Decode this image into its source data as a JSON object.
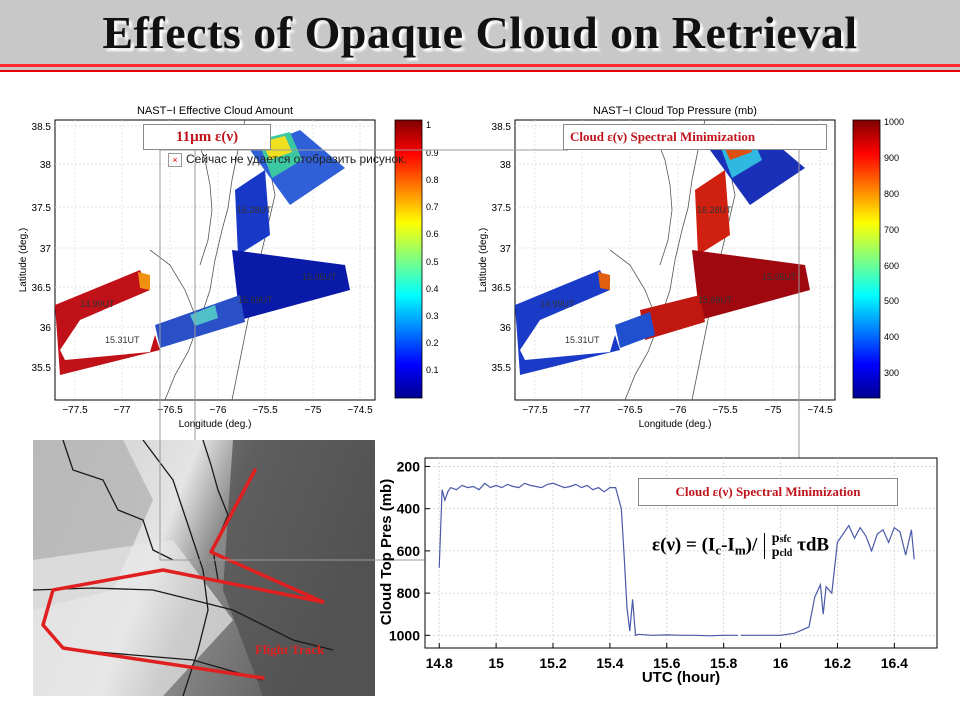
{
  "title": "Effects of Opaque Cloud on Retrieval",
  "map_left": {
    "title": "NAST−I Effective Cloud Amount",
    "xlabel": "Longitude (deg.)",
    "ylabel": "Latitude (deg.)",
    "xticks": [
      "−77.5",
      "−77",
      "−76.5",
      "−76",
      "−75.5",
      "−75",
      "−74.5"
    ],
    "yticks": [
      "38.5",
      "38",
      "37.5",
      "37",
      "36.5",
      "36",
      "35.5"
    ],
    "colorbar_ticks": [
      "1",
      "0.9",
      "0.8",
      "0.7",
      "0.6",
      "0.5",
      "0.4",
      "0.3",
      "0.2",
      "0.1"
    ],
    "track_labels": [
      "14.99UT",
      "15.31UT",
      "15.69UT",
      "15.95UT",
      "16.28UT"
    ]
  },
  "map_right": {
    "title": "NAST−I Cloud Top Pressure (mb)",
    "xlabel": "Longitude (deg.)",
    "ylabel": "Latitude (deg.)",
    "xticks": [
      "−77.5",
      "−77",
      "−76.5",
      "−76",
      "−75.5",
      "−75",
      "−74.5"
    ],
    "yticks": [
      "38.5",
      "38",
      "37.5",
      "37",
      "36.5",
      "36",
      "35.5"
    ],
    "colorbar_ticks": [
      "1000",
      "900",
      "800",
      "700",
      "600",
      "500",
      "400",
      "300"
    ],
    "track_labels": [
      "14.99UT",
      "15.31UT",
      "15.69UT",
      "15.95UT",
      "16.28UT"
    ]
  },
  "annotations": {
    "label_11um": "11µm ε(ν)",
    "spectral_min_top": "Cloud ε(ν) Spectral Minimization",
    "spectral_min_bottom": "Cloud ε(ν) Spectral Minimization",
    "popup_text": "Сейчас не удается отобразить рисунок.",
    "popup_icon": "×",
    "flight_track": "Flight Track",
    "formula_lhs": "ε(ν) = (I",
    "formula_c": "c",
    "formula_mid": "-I",
    "formula_m": "m",
    "formula_rhs": ")/",
    "formula_psfc": "p",
    "formula_sfc": "sfc",
    "formula_pcld": "p",
    "formula_cld": "cld",
    "formula_tail": " τdB"
  },
  "colors": {
    "accent_red": "#e02020",
    "series": "#4a5aa8"
  },
  "chart_data": {
    "type": "line",
    "title": "",
    "xlabel": "UTC (hour)",
    "ylabel": "Cloud Top Pres (mb)",
    "xlim": [
      14.75,
      16.55
    ],
    "ylim": [
      1060,
      160
    ],
    "y_reversed": true,
    "xticks": [
      14.8,
      15.0,
      15.2,
      15.4,
      15.6,
      15.8,
      16.0,
      16.2,
      16.4
    ],
    "xtick_labels": [
      "14.8",
      "15",
      "15.2",
      "15.4",
      "15.6",
      "15.8",
      "16",
      "16.2",
      "16.4"
    ],
    "yticks": [
      200,
      400,
      600,
      800,
      1000
    ],
    "ytick_labels": [
      "200",
      "400",
      "600",
      "800",
      "1000"
    ],
    "grid": true,
    "series": [
      {
        "x": [
          14.8,
          14.81,
          14.82,
          14.83,
          14.84,
          14.86,
          14.88,
          14.9,
          14.92,
          14.94,
          14.96,
          14.98,
          15.0,
          15.02,
          15.04,
          15.06,
          15.08,
          15.1,
          15.12,
          15.14,
          15.16,
          15.18,
          15.2,
          15.22,
          15.24,
          15.26,
          15.28,
          15.3,
          15.32,
          15.34,
          15.36,
          15.38,
          15.4,
          15.42,
          15.44,
          15.45,
          15.46,
          15.47,
          15.48,
          15.49,
          15.5,
          15.55,
          15.6,
          15.65,
          15.7,
          15.75,
          15.8,
          15.85
        ],
        "y": [
          680,
          310,
          360,
          320,
          300,
          310,
          290,
          300,
          295,
          310,
          280,
          300,
          290,
          300,
          285,
          295,
          300,
          280,
          290,
          295,
          300,
          285,
          280,
          290,
          300,
          295,
          285,
          300,
          290,
          310,
          300,
          320,
          300,
          300,
          400,
          620,
          870,
          980,
          830,
          1000,
          995,
          1000,
          998,
          1000,
          1000,
          1002,
          1000,
          1000
        ]
      },
      {
        "x": [
          15.86,
          15.9,
          15.95,
          16.0,
          16.05,
          16.1,
          16.12,
          16.14,
          16.15,
          16.16,
          16.18,
          16.2,
          16.22,
          16.24,
          16.26,
          16.28,
          16.3,
          16.32,
          16.34,
          16.36,
          16.38,
          16.4,
          16.42,
          16.44,
          16.46,
          16.47
        ],
        "y": [
          1000,
          1000,
          1000,
          1000,
          990,
          960,
          820,
          760,
          900,
          770,
          800,
          560,
          520,
          480,
          540,
          490,
          530,
          600,
          520,
          500,
          560,
          490,
          510,
          620,
          500,
          640
        ]
      }
    ]
  }
}
